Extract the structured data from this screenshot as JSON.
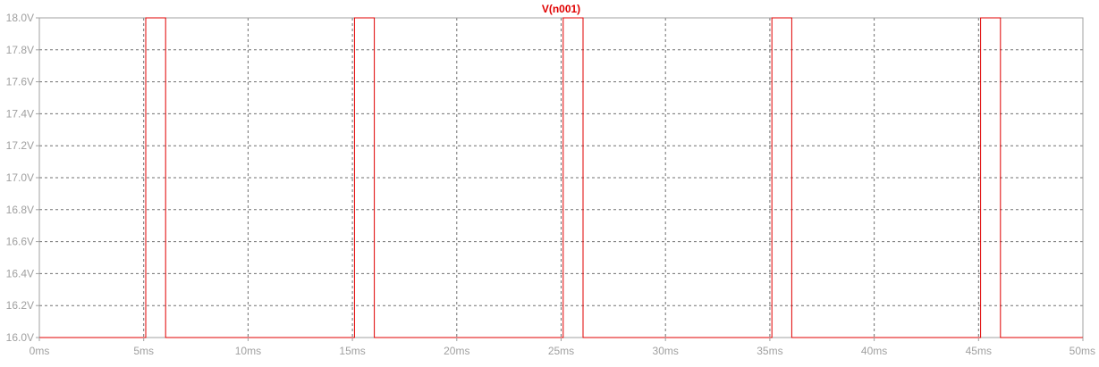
{
  "chart_data": {
    "type": "line",
    "title": "",
    "xlabel": "",
    "ylabel": "",
    "xlim": [
      0,
      50
    ],
    "ylim": [
      16.0,
      18.0
    ],
    "x_ticks": [
      0,
      5,
      10,
      15,
      20,
      25,
      30,
      35,
      40,
      45,
      50
    ],
    "x_tick_labels": [
      "0ms",
      "5ms",
      "10ms",
      "15ms",
      "20ms",
      "25ms",
      "30ms",
      "35ms",
      "40ms",
      "45ms",
      "50ms"
    ],
    "y_ticks": [
      16.0,
      16.2,
      16.4,
      16.6,
      16.8,
      17.0,
      17.2,
      17.4,
      17.6,
      17.8,
      18.0
    ],
    "y_tick_labels": [
      "16.0V",
      "16.2V",
      "16.4V",
      "16.6V",
      "16.8V",
      "17.0V",
      "17.2V",
      "17.4V",
      "17.6V",
      "17.8V",
      "18.0V"
    ],
    "grid": true,
    "series": [
      {
        "name": "V(n001)",
        "color": "#e00000",
        "x": [
          0,
          5.1,
          5.1,
          6.05,
          6.05,
          15.1,
          15.1,
          16.05,
          16.05,
          25.1,
          25.1,
          26.05,
          26.05,
          35.1,
          35.1,
          36.05,
          36.05,
          45.1,
          45.1,
          46.05,
          46.05,
          50
        ],
        "y": [
          16.0,
          16.0,
          18.0,
          18.0,
          16.0,
          16.0,
          18.0,
          18.0,
          16.0,
          16.0,
          18.0,
          18.0,
          16.0,
          16.0,
          18.0,
          18.0,
          16.0,
          16.0,
          18.0,
          18.0,
          16.0,
          16.0
        ]
      }
    ],
    "colors": {
      "axis": "#a0a0a0",
      "grid": "#707070",
      "tick_text": "#a0a0a0"
    }
  }
}
